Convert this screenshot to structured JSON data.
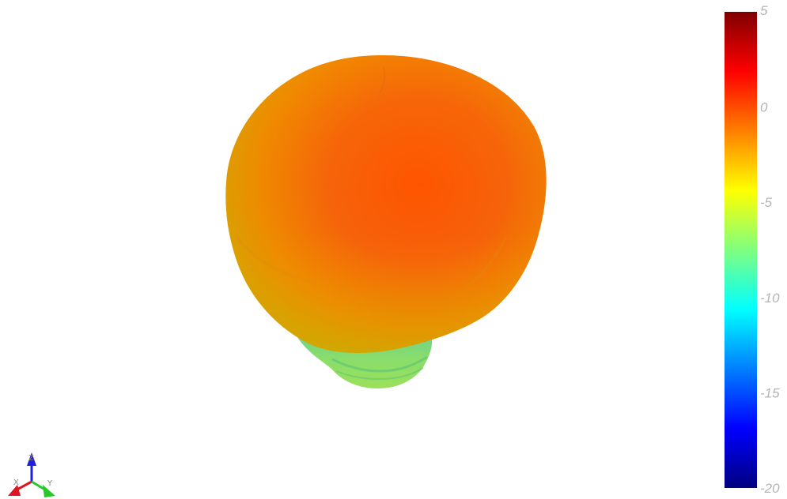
{
  "chart_data": {
    "type": "3d-surface",
    "colorbar": {
      "min": -20,
      "max": 5,
      "ticks": [
        5,
        0,
        -5,
        -10,
        -15,
        -20
      ],
      "tick_labels": [
        "5",
        "0",
        "-5",
        "-10",
        "-15",
        "-20"
      ],
      "colormap": "jet",
      "stops": [
        "#7f0000",
        "#ff0000",
        "#ff7f00",
        "#ffff00",
        "#7fff7f",
        "#00ffff",
        "#007fff",
        "#0000ff",
        "#00007f"
      ]
    },
    "surface": {
      "description_colors": {
        "main_lobe": "#f06a00",
        "main_lobe_highlight": "#ff5a00",
        "lower_band": "#f0a000",
        "neck": "#7fd870"
      }
    },
    "orientation_axes": {
      "labels": [
        "X",
        "Y",
        "Z"
      ],
      "colors": {
        "X": "#e0141e",
        "Y": "#28c828",
        "Z": "#1e1edc"
      }
    }
  }
}
